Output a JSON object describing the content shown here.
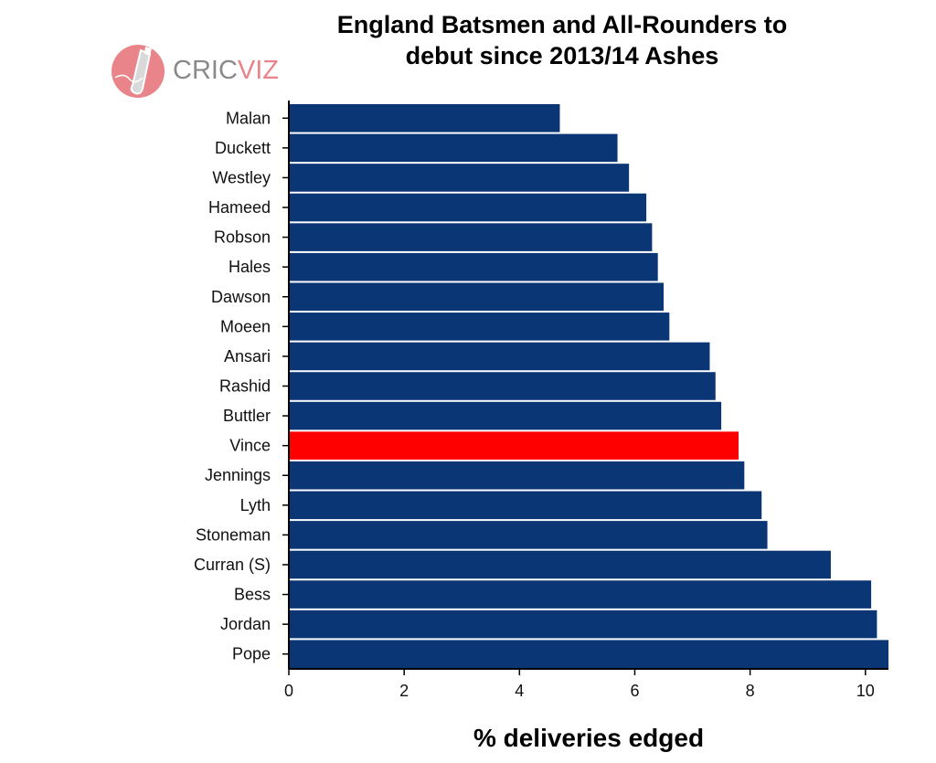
{
  "chart_data": {
    "type": "bar",
    "orientation": "horizontal",
    "title": "England Batsmen and All-Rounders to debut since 2013/14 Ashes",
    "title_lines": [
      "England Batsmen and All-Rounders to",
      "debut since 2013/14 Ashes"
    ],
    "xlabel": "% deliveries edged",
    "ylabel": "",
    "xlim": [
      0,
      10.4
    ],
    "xticks": [
      0,
      2,
      4,
      6,
      8,
      10
    ],
    "grid": false,
    "categories": [
      "Malan",
      "Duckett",
      "Westley",
      "Hameed",
      "Robson",
      "Hales",
      "Dawson",
      "Moeen",
      "Ansari",
      "Rashid",
      "Buttler",
      "Vince",
      "Jennings",
      "Lyth",
      "Stoneman",
      "Curran (S)",
      "Bess",
      "Jordan",
      "Pope"
    ],
    "values": [
      4.7,
      5.7,
      5.9,
      6.2,
      6.3,
      6.4,
      6.5,
      6.6,
      7.3,
      7.4,
      7.5,
      7.8,
      7.9,
      8.2,
      8.3,
      9.4,
      10.1,
      10.2,
      10.4
    ],
    "highlight": "Vince",
    "colors": {
      "bar": "#0b3675",
      "highlight": "#ff0000"
    }
  },
  "logo": {
    "text_a": "CRIC",
    "text_b": "VIZ",
    "icon": "cricket-bat-ball-icon"
  }
}
